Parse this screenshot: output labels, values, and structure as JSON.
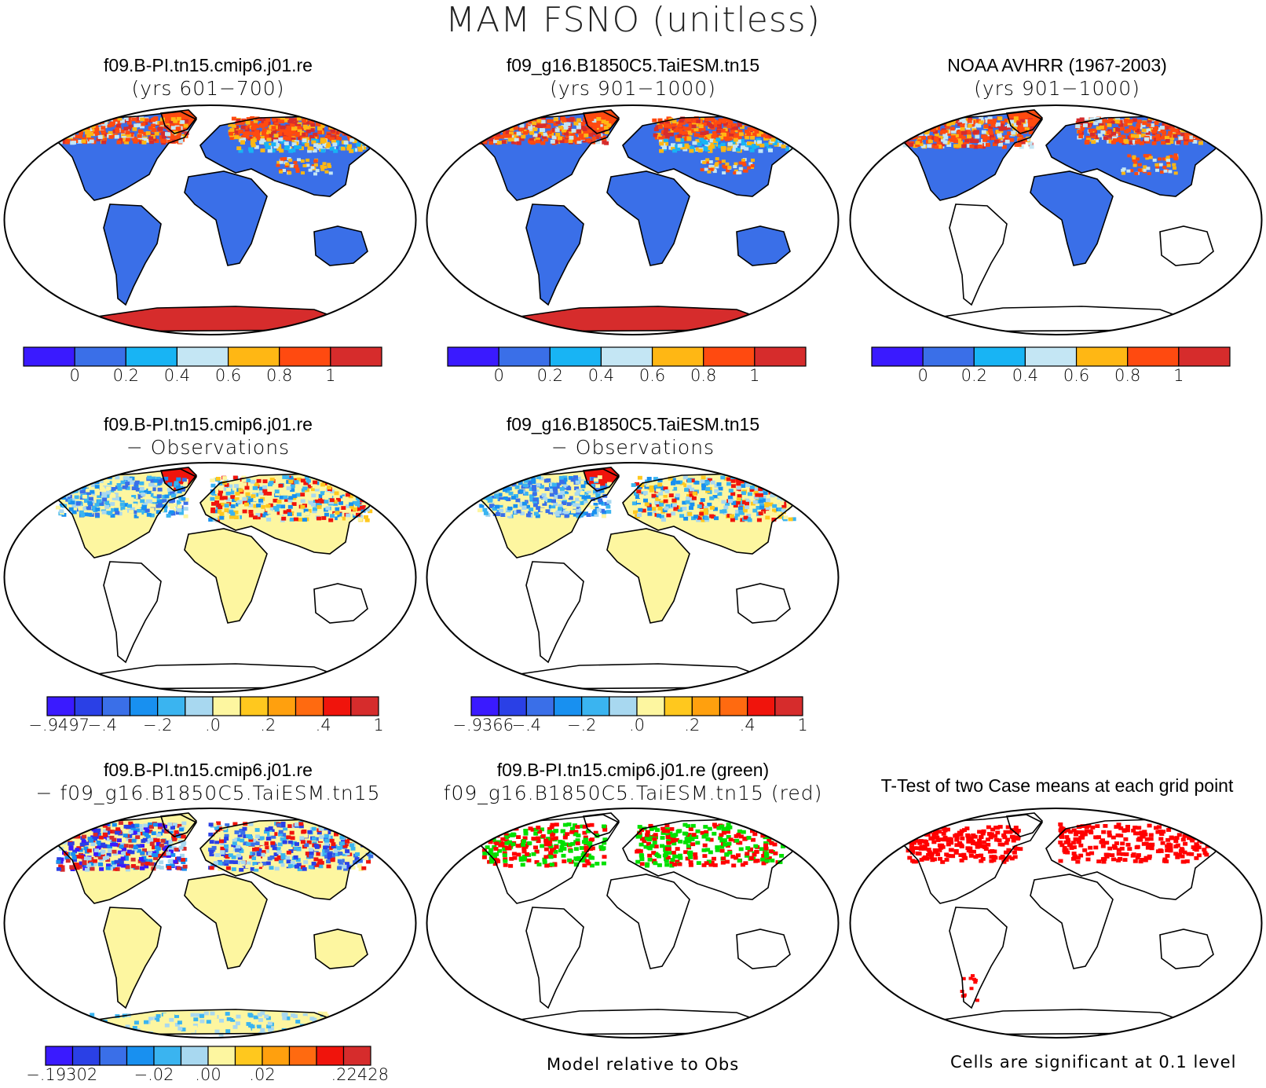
{
  "figure": {
    "title": "MAM FSNO (unitless)",
    "notes": {
      "diff_caption": "Model relative to Obs",
      "ttest_caption": "Cells are significant at 0.1 level"
    }
  },
  "colors": {
    "abs": [
      "#3a1aff",
      "#3a6fe8",
      "#18b4f4",
      "#c4e6f4",
      "#ffb714",
      "#ff4a10",
      "#d62c2c"
    ],
    "diff": [
      "#3a1aff",
      "#2a40e6",
      "#3a6fe8",
      "#1890f0",
      "#3ab4f0",
      "#a8d8f0",
      "#fdf6a0",
      "#ffc81e",
      "#ffa00e",
      "#ff6a10",
      "#f0140c",
      "#d62c2c"
    ],
    "ttest_sig": "#ff0000",
    "case1_green": "#00e000",
    "case2_red": "#ff0000"
  },
  "chart_data": [
    {
      "type": "heatmap",
      "id": "p1",
      "title_line1": "f09.B-PI.tn15.cmip6.j01.re",
      "title_line2": "(yrs 601−700)",
      "colorbar": {
        "ticks": [
          "0",
          "0.2",
          "0.4",
          "0.6",
          "0.8",
          "1"
        ]
      }
    },
    {
      "type": "heatmap",
      "id": "p2",
      "title_line1": "f09_g16.B1850C5.TaiESM.tn15",
      "title_line2": "(yrs 901−1000)",
      "colorbar": {
        "ticks": [
          "0",
          "0.2",
          "0.4",
          "0.6",
          "0.8",
          "1"
        ]
      }
    },
    {
      "type": "heatmap",
      "id": "p3",
      "title_line1": "NOAA AVHRR (1967-2003)",
      "title_line2": "(yrs 901−1000)",
      "colorbar": {
        "ticks": [
          "0",
          "0.2",
          "0.4",
          "0.6",
          "0.8",
          "1"
        ]
      }
    },
    {
      "type": "heatmap",
      "id": "p4",
      "title_line1": "f09.B-PI.tn15.cmip6.j01.re",
      "title_line2": "− Observations",
      "colorbar": {
        "ticks": [
          "−.9497",
          "−.4",
          "−.2",
          ".0",
          ".2",
          ".4",
          "1"
        ]
      }
    },
    {
      "type": "heatmap",
      "id": "p5",
      "title_line1": "f09_g16.B1850C5.TaiESM.tn15",
      "title_line2": "− Observations",
      "colorbar": {
        "ticks": [
          "−.9366",
          "−.4",
          "−.2",
          ".0",
          ".2",
          ".4",
          "1"
        ]
      }
    },
    {
      "type": "heatmap",
      "id": "p6",
      "title_line1": "f09.B-PI.tn15.cmip6.j01.re",
      "title_line2": "− f09_g16.B1850C5.TaiESM.tn15",
      "colorbar": {
        "ticks": [
          "−.19302",
          "−.02",
          ".00",
          ".02",
          ".22428"
        ]
      }
    },
    {
      "type": "heatmap",
      "id": "p7",
      "title_line1": "f09.B-PI.tn15.cmip6.j01.re (green)",
      "title_line2": "f09_g16.B1850C5.TaiESM.tn15 (red)"
    },
    {
      "type": "heatmap",
      "id": "p8",
      "title_line1": "T-Test of two Case means at each grid point",
      "title_line2": ""
    }
  ]
}
